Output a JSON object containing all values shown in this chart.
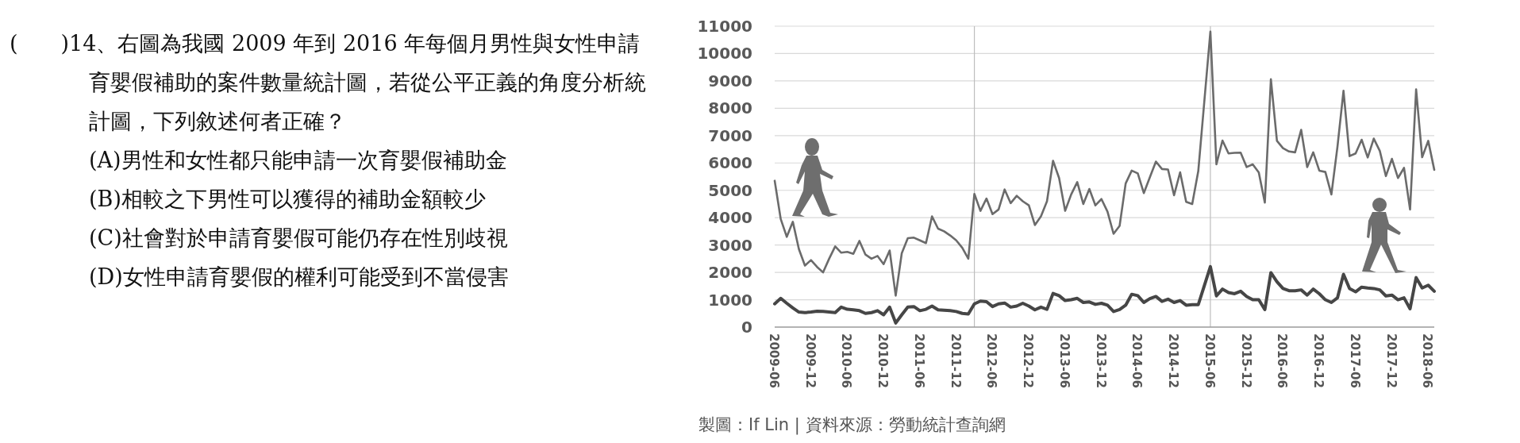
{
  "chart_data": {
    "type": "line",
    "x": [
      "2009-06",
      "2009-07",
      "2009-08",
      "2009-09",
      "2009-10",
      "2009-11",
      "2009-12",
      "2010-01",
      "2010-02",
      "2010-03",
      "2010-04",
      "2010-05",
      "2010-06",
      "2010-07",
      "2010-08",
      "2010-09",
      "2010-10",
      "2010-11",
      "2010-12",
      "2011-01",
      "2011-02",
      "2011-03",
      "2011-04",
      "2011-05",
      "2011-06",
      "2011-07",
      "2011-08",
      "2011-09",
      "2011-10",
      "2011-11",
      "2011-12",
      "2012-01",
      "2012-02",
      "2012-03",
      "2012-04",
      "2012-05",
      "2012-06",
      "2012-07",
      "2012-08",
      "2012-09",
      "2012-10",
      "2012-11",
      "2012-12",
      "2013-01",
      "2013-02",
      "2013-03",
      "2013-04",
      "2013-05",
      "2013-06",
      "2013-07",
      "2013-08",
      "2013-09",
      "2013-10",
      "2013-11",
      "2013-12",
      "2014-01",
      "2014-02",
      "2014-03",
      "2014-04",
      "2014-05",
      "2014-06",
      "2014-07",
      "2014-08",
      "2014-09",
      "2014-10",
      "2014-11",
      "2014-12",
      "2015-01",
      "2015-02",
      "2015-03",
      "2015-04",
      "2015-05",
      "2015-06",
      "2015-07",
      "2015-08",
      "2015-09",
      "2015-10",
      "2015-11",
      "2015-12",
      "2016-01",
      "2016-02",
      "2016-03",
      "2016-04",
      "2016-05",
      "2016-06",
      "2016-07",
      "2016-08",
      "2016-09",
      "2016-10",
      "2016-11",
      "2016-12",
      "2017-01",
      "2017-02",
      "2017-03",
      "2017-04",
      "2017-05",
      "2017-06",
      "2017-07",
      "2017-08",
      "2017-09",
      "2017-10",
      "2017-11",
      "2017-12",
      "2018-01",
      "2018-02",
      "2018-03",
      "2018-04",
      "2018-05",
      "2018-06",
      "2018-07"
    ],
    "series": [
      {
        "color": "#6b6b6b",
        "values": [
          5350,
          3950,
          3300,
          3850,
          2850,
          2250,
          2450,
          2200,
          2000,
          2500,
          2950,
          2720,
          2750,
          2680,
          3150,
          2650,
          2500,
          2600,
          2300,
          2800,
          1150,
          2700,
          3250,
          3270,
          3170,
          3070,
          4050,
          3600,
          3500,
          3350,
          3170,
          2900,
          2500,
          4870,
          4250,
          4700,
          4130,
          4300,
          5030,
          4530,
          4800,
          4600,
          4450,
          3730,
          4050,
          4600,
          6080,
          5450,
          4250,
          4850,
          5300,
          4500,
          5050,
          4450,
          4680,
          4220,
          3410,
          3700,
          5250,
          5720,
          5620,
          4900,
          5480,
          6050,
          5780,
          5760,
          4820,
          5660,
          4580,
          4500,
          5700,
          8250,
          10800,
          5950,
          6820,
          6350,
          6370,
          6380,
          5850,
          5950,
          5650,
          4550,
          9060,
          6810,
          6540,
          6420,
          6390,
          7210,
          5850,
          6390,
          5720,
          5670,
          4850,
          6590,
          8640,
          6250,
          6350,
          6850,
          6200,
          6890,
          6440,
          5520,
          6150,
          5450,
          5820,
          4300,
          8690,
          6210,
          6810,
          5750
        ]
      },
      {
        "color": "#464646",
        "values": [
          850,
          1050,
          870,
          700,
          550,
          530,
          550,
          580,
          570,
          550,
          530,
          730,
          650,
          630,
          600,
          500,
          530,
          600,
          450,
          730,
          150,
          450,
          730,
          750,
          600,
          650,
          770,
          630,
          620,
          600,
          570,
          500,
          480,
          850,
          950,
          930,
          750,
          850,
          880,
          730,
          770,
          870,
          770,
          630,
          730,
          650,
          1230,
          1150,
          970,
          1000,
          1050,
          900,
          920,
          830,
          870,
          800,
          570,
          640,
          800,
          1200,
          1150,
          900,
          1040,
          1120,
          940,
          1020,
          900,
          970,
          800,
          820,
          820,
          1510,
          2210,
          1140,
          1390,
          1260,
          1220,
          1310,
          1120,
          1000,
          1000,
          640,
          1990,
          1660,
          1410,
          1330,
          1330,
          1360,
          1170,
          1390,
          1220,
          1000,
          900,
          1070,
          1930,
          1410,
          1290,
          1460,
          1430,
          1410,
          1360,
          1140,
          1170,
          1000,
          1070,
          670,
          1810,
          1430,
          1530,
          1310
        ]
      }
    ],
    "xlim": [
      "2009-06",
      "2018-07"
    ],
    "xticks": [
      "2009-06",
      "2009-12",
      "2010-06",
      "2010-12",
      "2011-06",
      "2011-12",
      "2012-06",
      "2012-12",
      "2013-06",
      "2013-12",
      "2014-06",
      "2014-12",
      "2015-06",
      "2015-12",
      "2016-06",
      "2016-12",
      "2017-06",
      "2017-12",
      "2018-06"
    ],
    "ylim": [
      0,
      11000
    ],
    "yticks": [
      0,
      1000,
      2000,
      3000,
      4000,
      5000,
      6000,
      7000,
      8000,
      9000,
      10000,
      11000
    ],
    "grid": "y",
    "marker": "none",
    "line_style": "solid",
    "ref_lines": [
      {
        "axis": "x",
        "value": "2012-03",
        "color": "#bdbdbd"
      },
      {
        "axis": "x",
        "value": "2015-06",
        "color": "#bdbdbd"
      }
    ],
    "annotations": [
      "(　　)14、右圖為我國 2009 年到 2016 年每個月男性與女性申請育嬰假補助的案件數量統計圖，若從公平正義的角度分析統計圖，下列敘述何者正確？",
      "(A)男性和女性都只能申請一次育嬰假補助金",
      "(B)相較之下男性可以獲得的補助金額較少",
      "(C)社會對於申請育嬰假可能仍存在性別歧視",
      "(D)女性申請育嬰假的權利可能受到不當侵害",
      "製圖：If Lin | 資料來源：勞動統計查詢網"
    ]
  }
}
